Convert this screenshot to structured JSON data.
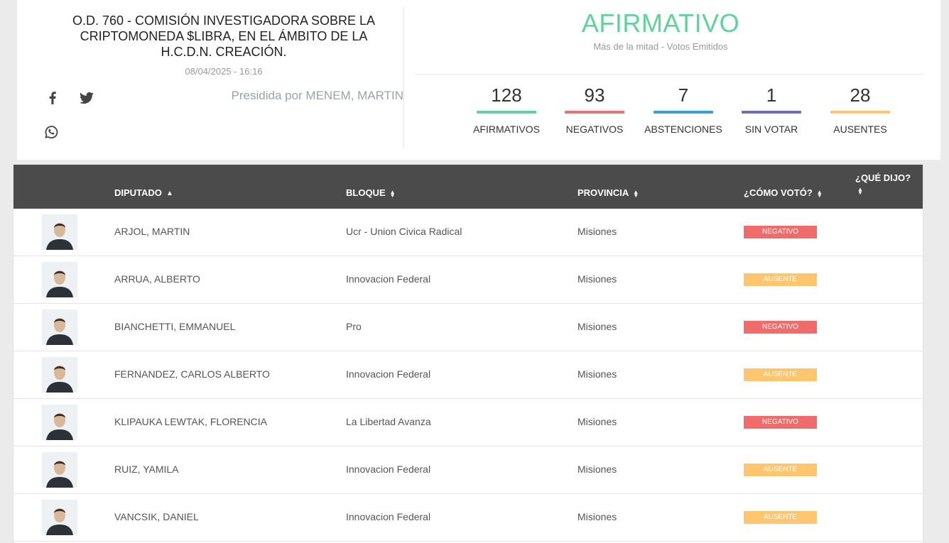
{
  "header": {
    "title": "O.D. 760 - COMISIÓN INVESTIGADORA SOBRE LA CRIPTOMONEDA $LIBRA, EN EL ÁMBITO DE LA H.C.D.N. CREACIÓN.",
    "date": "08/04/2025 - 16:16",
    "presidida": "Presidida por MENEM, MARTIN",
    "share_icons": [
      "facebook-icon",
      "twitter-icon",
      "whatsapp-icon"
    ]
  },
  "result": {
    "label": "AFIRMATIVO",
    "subtitle": "Más de la mitad - Votos Emitidos",
    "color": "#5ed39b"
  },
  "stats": [
    {
      "value": "128",
      "label": "AFIRMATIVOS",
      "color": "#5ed39b"
    },
    {
      "value": "93",
      "label": "NEGATIVOS",
      "color": "#e57373"
    },
    {
      "value": "7",
      "label": "ABSTENCIONES",
      "color": "#3a9fd5"
    },
    {
      "value": "1",
      "label": "SIN VOTAR",
      "color": "#6c6fb4"
    },
    {
      "value": "28",
      "label": "AUSENTES",
      "color": "#ffc66e"
    }
  ],
  "table": {
    "headers": {
      "diputado": "DIPUTADO",
      "bloque": "BLOQUE",
      "provincia": "PROVINCIA",
      "voto": "¿CÓMO VOTÓ?",
      "dijo": "¿QUÉ DIJO?"
    },
    "rows": [
      {
        "name": "ARJOL, MARTIN",
        "bloque": "Ucr - Union Civica Radical",
        "provincia": "Misiones",
        "voto": "NEGATIVO",
        "color": "#f26b6b"
      },
      {
        "name": "ARRUA, ALBERTO",
        "bloque": "Innovacion Federal",
        "provincia": "Misiones",
        "voto": "AUSENTE",
        "color": "#ffc66e"
      },
      {
        "name": "BIANCHETTI, EMMANUEL",
        "bloque": "Pro",
        "provincia": "Misiones",
        "voto": "NEGATIVO",
        "color": "#f26b6b"
      },
      {
        "name": "FERNANDEZ, CARLOS ALBERTO",
        "bloque": "Innovacion Federal",
        "provincia": "Misiones",
        "voto": "AUSENTE",
        "color": "#ffc66e"
      },
      {
        "name": "KLIPAUKA LEWTAK, FLORENCIA",
        "bloque": "La Libertad Avanza",
        "provincia": "Misiones",
        "voto": "NEGATIVO",
        "color": "#f26b6b"
      },
      {
        "name": "RUIZ, YAMILA",
        "bloque": "Innovacion Federal",
        "provincia": "Misiones",
        "voto": "AUSENTE",
        "color": "#ffc66e"
      },
      {
        "name": "VANCSIK, DANIEL",
        "bloque": "Innovacion Federal",
        "provincia": "Misiones",
        "voto": "AUSENTE",
        "color": "#ffc66e"
      }
    ]
  }
}
